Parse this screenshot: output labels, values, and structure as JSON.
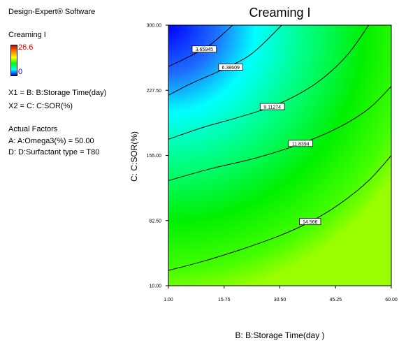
{
  "software": "Design-Expert® Software",
  "response_name": "Creaming I",
  "legend": {
    "max": "26.6",
    "min": "0"
  },
  "factors": {
    "x1": "X1 = B: B:Storage Time(day)",
    "x2": "X2 = C: C:SOR(%)"
  },
  "actual_factors": {
    "heading": "Actual Factors",
    "a": "A: A:Omega3(%) = 50.00",
    "d": "D: D:Surfactant type = T80"
  },
  "chart_data": {
    "type": "heatmap",
    "title": "Creaming I",
    "xlabel": "B: B:Storage Time(day )",
    "ylabel": "C: C:SOR(%)",
    "xlim": [
      1.0,
      60.0
    ],
    "ylim": [
      10.0,
      300.0
    ],
    "x_ticks": [
      "1.00",
      "15.75",
      "30.50",
      "45.25",
      "60.00"
    ],
    "y_ticks": [
      "10.00",
      "82.50",
      "155.00",
      "227.50",
      "300.00"
    ],
    "colorscale": [
      "#0000ff",
      "#00ffff",
      "#00ff00",
      "#ffff00",
      "#ff0000"
    ],
    "contours": [
      {
        "level": "3.65945",
        "points": [
          [
            1.0,
            254.0
          ],
          [
            6.0,
            264.0
          ],
          [
            12.0,
            278.0
          ],
          [
            18.0,
            300.0
          ]
        ],
        "label_at": [
          10.5,
          273.0
        ]
      },
      {
        "level": "6.38609",
        "points": [
          [
            1.0,
            222.0
          ],
          [
            7.0,
            235.0
          ],
          [
            15.0,
            250.0
          ],
          [
            23.0,
            268.0
          ],
          [
            31.0,
            300.0
          ]
        ],
        "label_at": [
          17.5,
          253.0
        ]
      },
      {
        "level": "9.11274",
        "points": [
          [
            1.0,
            173.0
          ],
          [
            10.0,
            186.0
          ],
          [
            20.0,
            198.0
          ],
          [
            30.0,
            212.0
          ],
          [
            40.0,
            235.0
          ],
          [
            48.0,
            265.0
          ],
          [
            54.0,
            300.0
          ]
        ],
        "label_at": [
          28.5,
          209.0
        ]
      },
      {
        "level": "11.8394",
        "points": [
          [
            1.0,
            127.0
          ],
          [
            12.0,
            140.0
          ],
          [
            24.0,
            152.0
          ],
          [
            36.0,
            168.0
          ],
          [
            46.0,
            186.0
          ],
          [
            54.0,
            207.0
          ],
          [
            60.0,
            232.0
          ]
        ],
        "label_at": [
          36.0,
          168.0
        ]
      },
      {
        "level": "14.566",
        "points": [
          [
            1.0,
            27.0
          ],
          [
            10.0,
            37.0
          ],
          [
            20.0,
            50.0
          ],
          [
            30.0,
            65.0
          ],
          [
            38.0,
            80.0
          ],
          [
            46.0,
            100.0
          ],
          [
            54.0,
            127.0
          ],
          [
            60.0,
            155.0
          ]
        ],
        "label_at": [
          38.5,
          81.0
        ]
      }
    ]
  }
}
